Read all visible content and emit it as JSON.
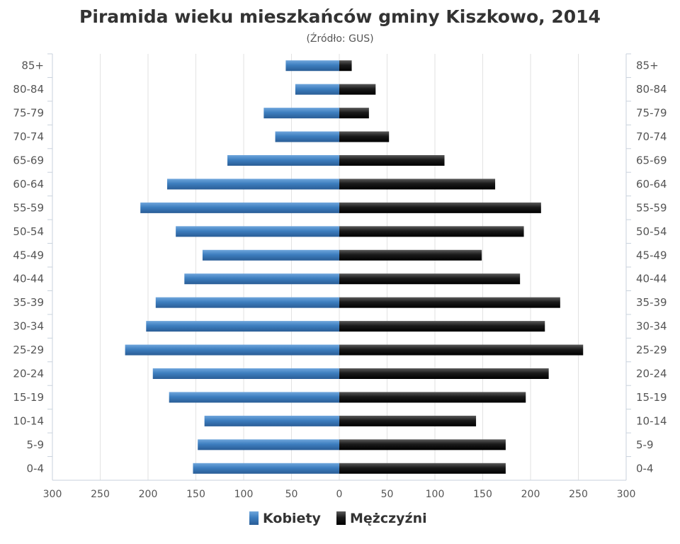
{
  "chart_data": {
    "type": "bar",
    "orientation": "horizontal-pyramid",
    "title": "Piramida wieku mieszkańców gminy Kiszkowo, 2014",
    "subtitle": "(Źródło: GUS)",
    "categories": [
      "85+",
      "80-84",
      "75-79",
      "70-74",
      "65-69",
      "60-64",
      "55-59",
      "50-54",
      "45-49",
      "40-44",
      "35-39",
      "30-34",
      "25-29",
      "20-24",
      "15-19",
      "10-14",
      "5-9",
      "0-4"
    ],
    "series": [
      {
        "name": "Kobiety",
        "color": "#3d7ebf",
        "side": "left",
        "values": [
          56,
          46,
          79,
          67,
          117,
          180,
          208,
          171,
          143,
          162,
          192,
          202,
          224,
          195,
          178,
          141,
          148,
          153
        ]
      },
      {
        "name": "Mężczyźni",
        "color": "#1a1a1a",
        "side": "right",
        "values": [
          13,
          38,
          31,
          52,
          110,
          163,
          211,
          193,
          149,
          189,
          231,
          215,
          255,
          219,
          195,
          143,
          174,
          174
        ]
      }
    ],
    "xlim": [
      -300,
      300
    ],
    "x_ticks": [
      -300,
      -250,
      -200,
      -150,
      -100,
      -50,
      0,
      50,
      100,
      150,
      200,
      250,
      300
    ],
    "x_tick_labels": [
      "300",
      "250",
      "200",
      "150",
      "100",
      "50",
      "0",
      "50",
      "100",
      "150",
      "200",
      "250",
      "300"
    ],
    "grid": true,
    "legend_position": "bottom-center"
  }
}
